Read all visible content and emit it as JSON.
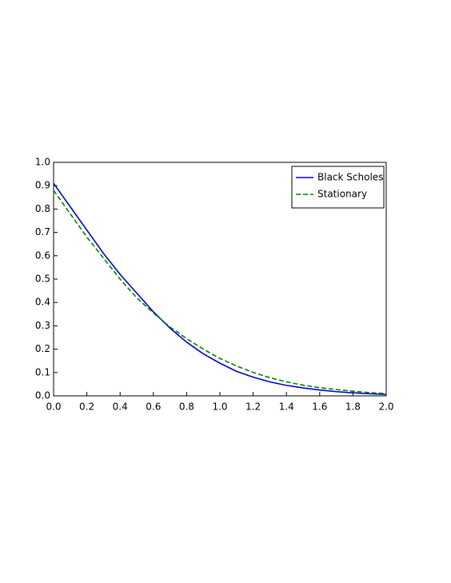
{
  "chart_data": {
    "type": "line",
    "x": [
      0,
      0.1,
      0.2,
      0.3,
      0.4,
      0.5,
      0.6,
      0.7,
      0.8,
      0.9,
      1,
      1.1,
      1.2,
      1.3,
      1.4,
      1.5,
      1.6,
      1.7,
      1.8,
      1.9,
      2
    ],
    "series": [
      {
        "name": "Black Scholes",
        "color": "#0000cc",
        "dash": false,
        "values": [
          0.91,
          0.81,
          0.71,
          0.61,
          0.52,
          0.44,
          0.36,
          0.29,
          0.23,
          0.18,
          0.14,
          0.105,
          0.08,
          0.06,
          0.045,
          0.034,
          0.025,
          0.018,
          0.013,
          0.009,
          0.006
        ]
      },
      {
        "name": "Stationary",
        "color": "#008000",
        "dash": true,
        "values": [
          0.88,
          0.78,
          0.68,
          0.59,
          0.5,
          0.42,
          0.355,
          0.295,
          0.245,
          0.2,
          0.16,
          0.128,
          0.1,
          0.078,
          0.06,
          0.046,
          0.035,
          0.027,
          0.02,
          0.014,
          0.01
        ]
      }
    ],
    "xlim": [
      0,
      2
    ],
    "xticks": [
      {
        "value": 0,
        "label": "0.0"
      },
      0.2,
      0.4,
      0.6,
      0.8,
      {
        "value": 1,
        "label": "1.0"
      },
      1.2,
      1.4,
      1.6,
      1.8,
      {
        "value": 2,
        "label": "2.0"
      }
    ],
    "ylim": [
      0,
      1
    ],
    "yticks": [
      {
        "value": 0,
        "label": "0.0"
      },
      0.1,
      0.2,
      0.3,
      0.4,
      0.5,
      0.6,
      0.7,
      0.8,
      0.9,
      {
        "value": 1,
        "label": "1.0"
      }
    ],
    "legend": "upper-right"
  }
}
